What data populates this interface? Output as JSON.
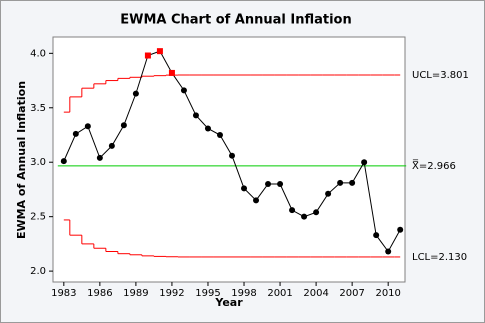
{
  "chart_data": {
    "type": "ewma",
    "title": "EWMA Chart of Annual Inflation",
    "xlabel": "Year",
    "ylabel": "EWMA of Annual Inflation",
    "x": [
      1983,
      1984,
      1985,
      1986,
      1987,
      1988,
      1989,
      1990,
      1991,
      1992,
      1993,
      1994,
      1995,
      1996,
      1997,
      1998,
      1999,
      2000,
      2001,
      2002,
      2003,
      2004,
      2005,
      2006,
      2007,
      2008,
      2009,
      2010,
      2011
    ],
    "series": [
      {
        "name": "EWMA",
        "color": "#000000",
        "out_color": "#ff0000",
        "values": [
          3.01,
          3.26,
          3.33,
          3.04,
          3.15,
          3.34,
          3.63,
          3.98,
          4.02,
          3.82,
          3.66,
          3.43,
          3.31,
          3.25,
          3.06,
          2.76,
          2.65,
          2.8,
          2.8,
          2.56,
          2.5,
          2.54,
          2.71,
          2.81,
          2.81,
          3.0,
          2.33,
          2.18,
          2.38
        ]
      }
    ],
    "ucl": [
      3.46,
      3.6,
      3.68,
      3.72,
      3.75,
      3.77,
      3.78,
      3.79,
      3.795,
      3.8,
      3.801,
      3.801,
      3.801,
      3.801,
      3.801,
      3.801,
      3.801,
      3.801,
      3.801,
      3.801,
      3.801,
      3.801,
      3.801,
      3.801,
      3.801,
      3.801,
      3.801,
      3.801,
      3.801
    ],
    "lcl": [
      2.47,
      2.33,
      2.25,
      2.21,
      2.18,
      2.16,
      2.15,
      2.14,
      2.135,
      2.132,
      2.13,
      2.13,
      2.13,
      2.13,
      2.13,
      2.13,
      2.13,
      2.13,
      2.13,
      2.13,
      2.13,
      2.13,
      2.13,
      2.13,
      2.13,
      2.13,
      2.13,
      2.13,
      2.13
    ],
    "center": 2.966,
    "limit_color": "#ff0000",
    "center_color": "#00cc00",
    "ucl_label": "UCL=3.801",
    "center_label": "X̿=2.966",
    "lcl_label": "LCL=2.130",
    "xlim": [
      1982.1,
      2011.4
    ],
    "ylim": [
      1.9,
      4.15
    ],
    "xticks": [
      1983,
      1986,
      1989,
      1992,
      1995,
      1998,
      2001,
      2004,
      2007,
      2010
    ],
    "yticks": [
      {
        "value": 2.0,
        "label": "2.0"
      },
      {
        "value": 2.5,
        "label": "2.5"
      },
      {
        "value": 3.0,
        "label": "3.0"
      },
      {
        "value": 3.5,
        "label": "3.5"
      },
      {
        "value": 4.0,
        "label": "4.0"
      }
    ]
  }
}
